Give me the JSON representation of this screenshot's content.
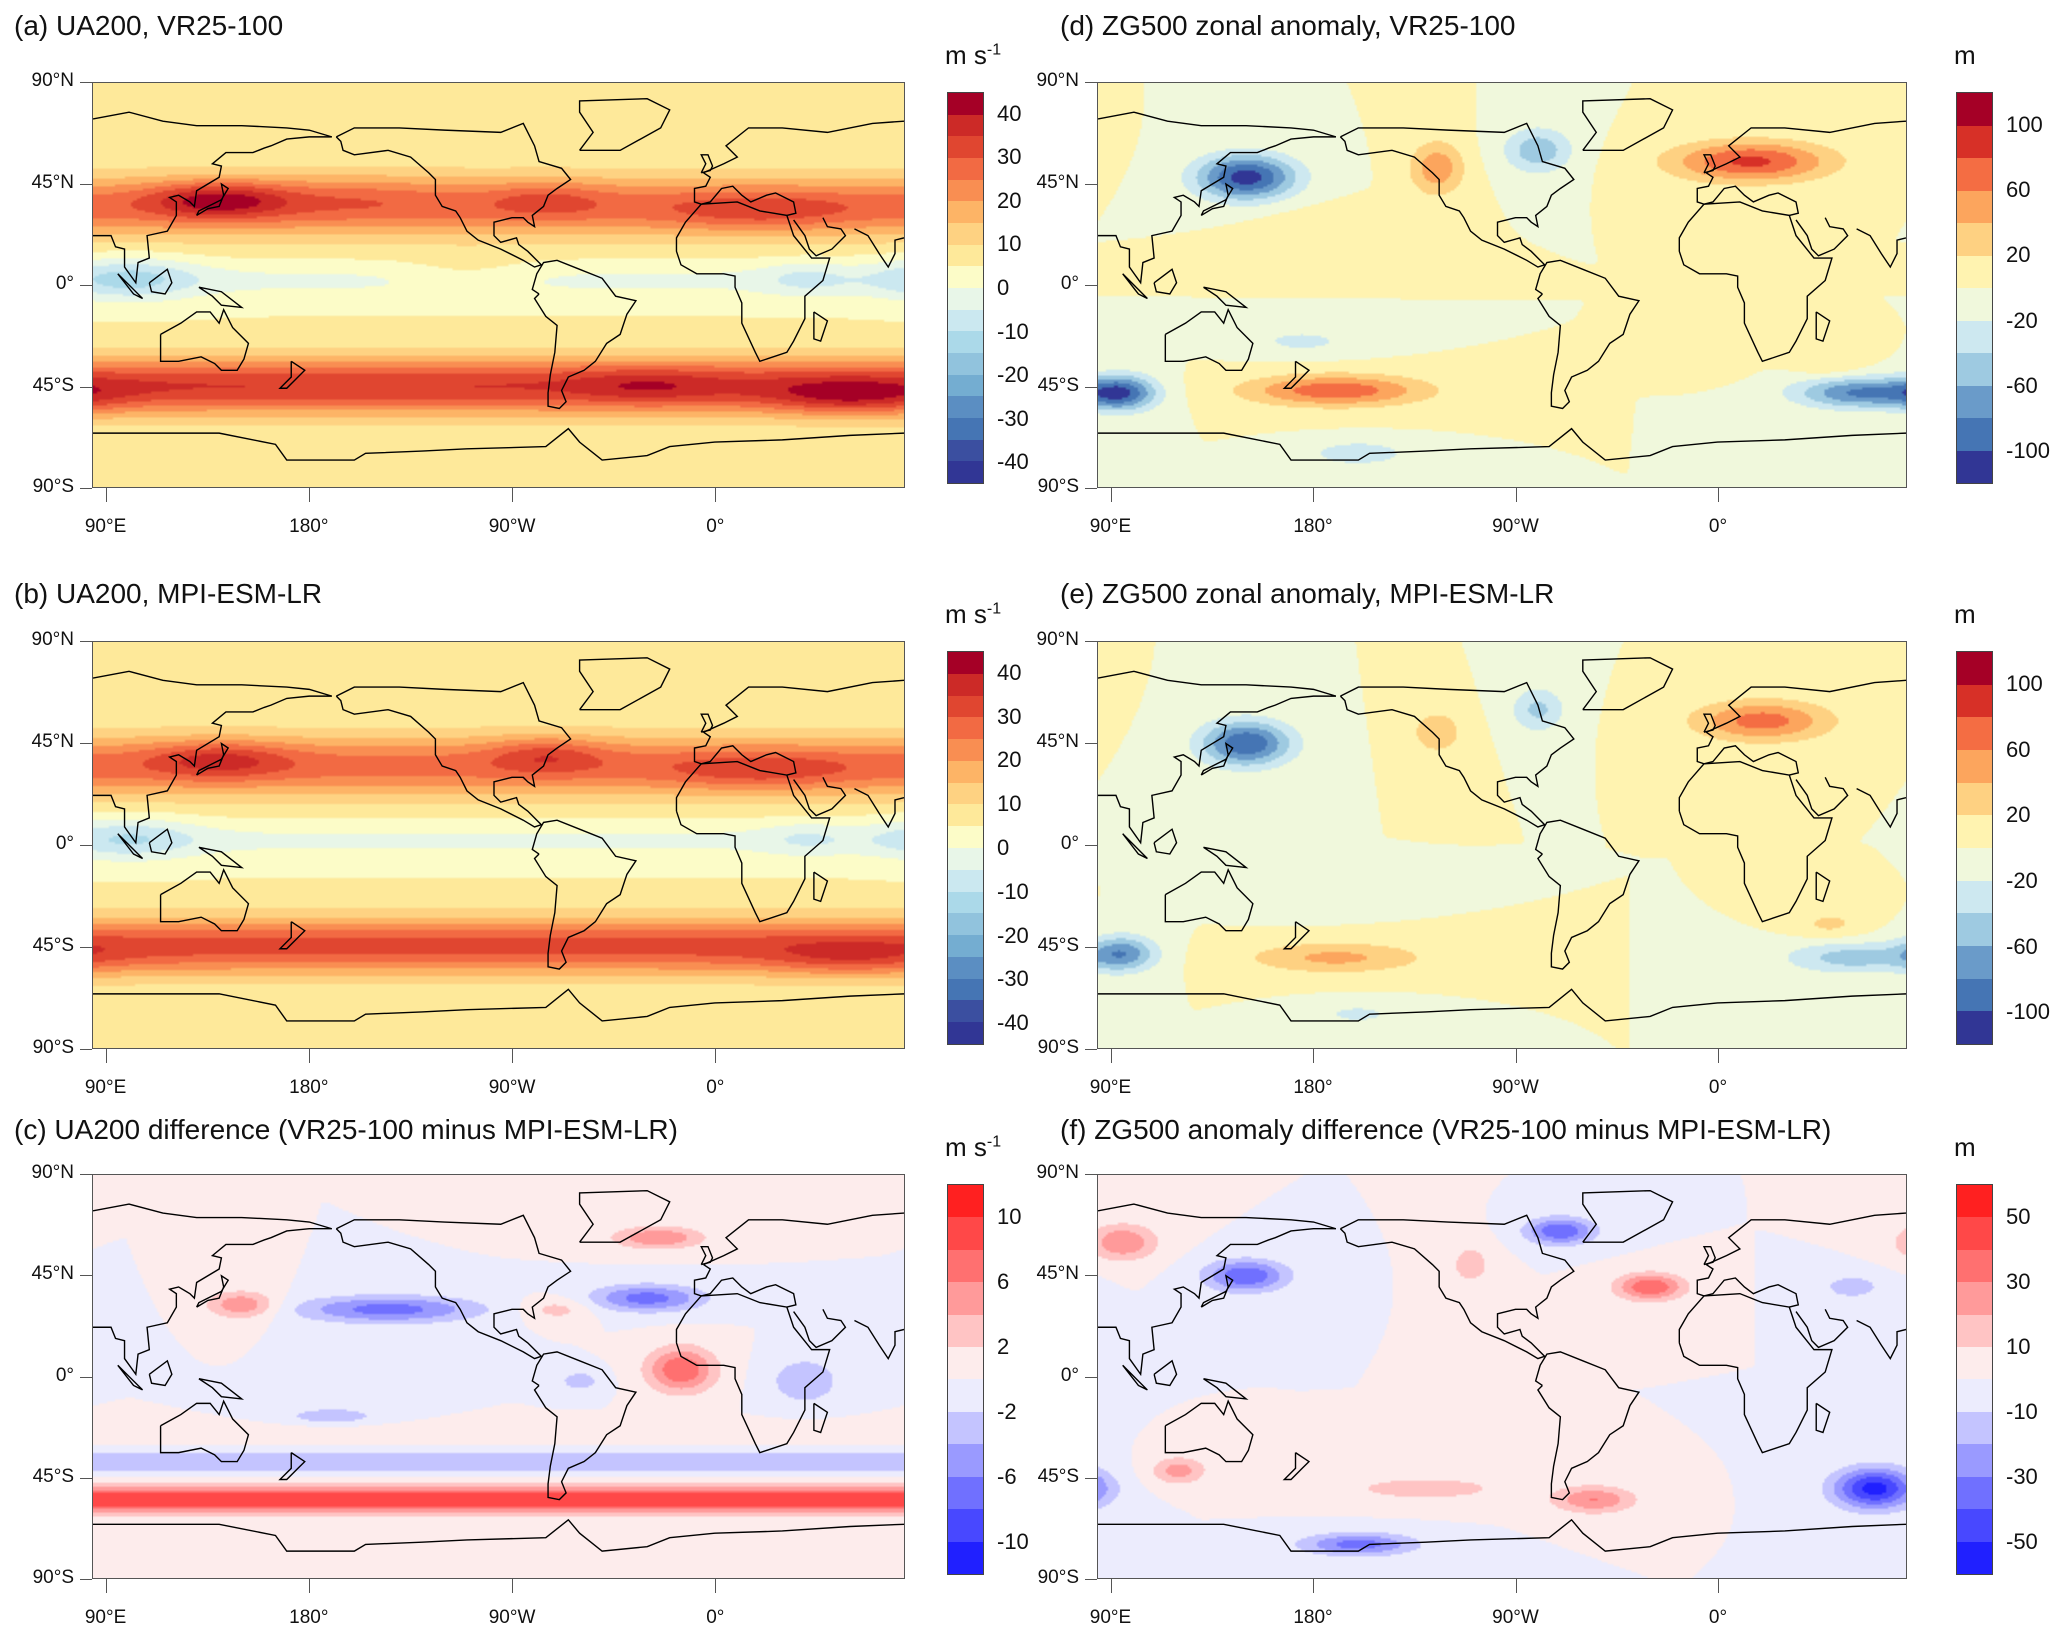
{
  "panels": [
    {
      "id": "a",
      "title": "(a) UA200, VR25-100",
      "unit": "m s",
      "unit_sup": "-1",
      "levels": [
        -40,
        -35,
        -30,
        -25,
        -20,
        -15,
        -10,
        -5,
        0,
        5,
        10,
        15,
        20,
        25,
        30,
        35,
        40
      ],
      "labels": [
        "40",
        "30",
        "20",
        "10",
        "0",
        "-10",
        "-20",
        "-30",
        "-40"
      ],
      "palette": "rdylbu18"
    },
    {
      "id": "d",
      "title": "(d) ZG500 zonal anomaly, VR25-100",
      "unit": "m",
      "unit_sup": "",
      "levels": [
        -100,
        -80,
        -60,
        -40,
        -20,
        0,
        20,
        40,
        60,
        80,
        100
      ],
      "labels": [
        "100",
        "60",
        "20",
        "-20",
        "-60",
        "-100"
      ],
      "palette": "rdylbu12"
    },
    {
      "id": "b",
      "title": "(b) UA200, MPI-ESM-LR",
      "unit": "m s",
      "unit_sup": "-1",
      "levels": [
        -40,
        -35,
        -30,
        -25,
        -20,
        -15,
        -10,
        -5,
        0,
        5,
        10,
        15,
        20,
        25,
        30,
        35,
        40
      ],
      "labels": [
        "40",
        "30",
        "20",
        "10",
        "0",
        "-10",
        "-20",
        "-30",
        "-40"
      ],
      "palette": "rdylbu18"
    },
    {
      "id": "e",
      "title": "(e) ZG500 zonal anomaly, MPI-ESM-LR",
      "unit": "m",
      "unit_sup": "",
      "levels": [
        -100,
        -80,
        -60,
        -40,
        -20,
        0,
        20,
        40,
        60,
        80,
        100
      ],
      "labels": [
        "100",
        "60",
        "20",
        "-20",
        "-60",
        "-100"
      ],
      "palette": "rdylbu12"
    },
    {
      "id": "c",
      "title": "(c) UA200 difference (VR25-100 minus MPI-ESM-LR)",
      "unit": "m s",
      "unit_sup": "-1",
      "levels": [
        -10,
        -8,
        -6,
        -4,
        -2,
        0,
        2,
        4,
        6,
        8,
        10
      ],
      "labels": [
        "10",
        "6",
        "2",
        "-2",
        "-6",
        "-10"
      ],
      "palette": "bwr12"
    },
    {
      "id": "f",
      "title": "(f) ZG500 anomaly difference (VR25-100 minus MPI-ESM-LR)",
      "unit": "m",
      "unit_sup": "",
      "levels": [
        -50,
        -40,
        -30,
        -20,
        -10,
        0,
        10,
        20,
        30,
        40,
        50
      ],
      "labels": [
        "50",
        "30",
        "10",
        "-10",
        "-30",
        "-50"
      ],
      "palette": "bwr12"
    }
  ],
  "lat_labels": [
    "90°N",
    "45°N",
    "0°",
    "45°S",
    "90°S"
  ],
  "lon_labels": [
    "90°E",
    "180°",
    "90°W",
    "0°"
  ],
  "palettes": {
    "rdylbu18": [
      "#313695",
      "#3b4fa0",
      "#4575b4",
      "#5b8ec2",
      "#74add1",
      "#91c3dd",
      "#abd9e9",
      "#cbe8f0",
      "#e8f6e8",
      "#fcfcc8",
      "#fee99a",
      "#fed282",
      "#fdb466",
      "#f98e52",
      "#f26a43",
      "#e04630",
      "#cc2a27",
      "#a50026"
    ],
    "rdylbu12": [
      "#313695",
      "#4575b4",
      "#6a9bc9",
      "#9ecae1",
      "#cde8f0",
      "#f0f8dc",
      "#fff3b0",
      "#fed182",
      "#fca55d",
      "#f46d43",
      "#d73027",
      "#a50026"
    ],
    "bwr12": [
      "#2020ff",
      "#4848ff",
      "#7070ff",
      "#9a9aff",
      "#c4c4ff",
      "#ececfd",
      "#fdecec",
      "#ffc4c4",
      "#ff9a9a",
      "#ff7070",
      "#ff4848",
      "#ff2020"
    ]
  },
  "coastline_color": "#000000"
}
